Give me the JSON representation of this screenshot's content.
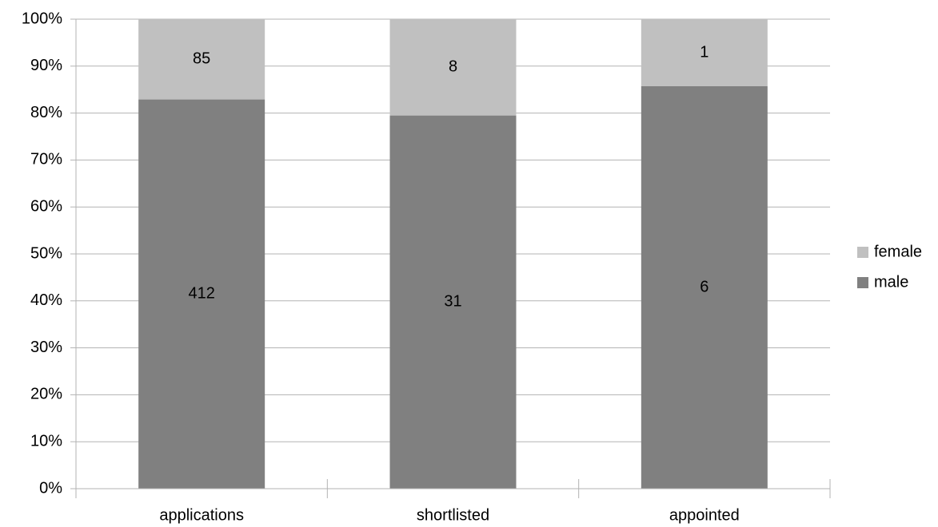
{
  "chart_data": {
    "type": "bar",
    "stacking": "percent",
    "categories": [
      "applications",
      "shortlisted",
      "appointed"
    ],
    "series": [
      {
        "name": "male",
        "color": "#808080",
        "values": [
          412,
          31,
          6
        ]
      },
      {
        "name": "female",
        "color": "#c0c0c0",
        "values": [
          85,
          8,
          1
        ]
      }
    ],
    "ylim": [
      0,
      100
    ],
    "yticks": [
      {
        "value": 0,
        "label": "0%"
      },
      {
        "value": 10,
        "label": "10%"
      },
      {
        "value": 20,
        "label": "20%"
      },
      {
        "value": 30,
        "label": "30%"
      },
      {
        "value": 40,
        "label": "40%"
      },
      {
        "value": 50,
        "label": "50%"
      },
      {
        "value": 60,
        "label": "60%"
      },
      {
        "value": 70,
        "label": "70%"
      },
      {
        "value": 80,
        "label": "80%"
      },
      {
        "value": 90,
        "label": "90%"
      },
      {
        "value": 100,
        "label": "100%"
      }
    ],
    "grid": true,
    "legend": "right"
  }
}
